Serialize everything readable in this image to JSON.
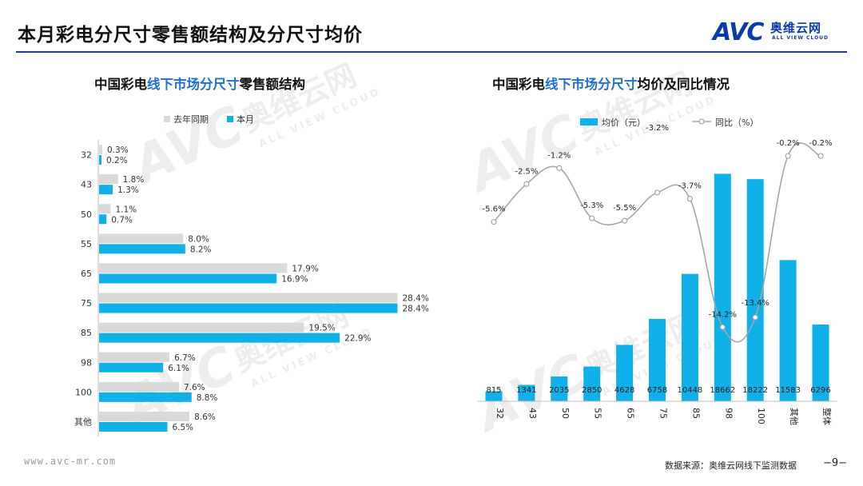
{
  "header": {
    "title": "本月彩电分尺寸零售额结构及分尺寸均价",
    "logo_text": "奥维云网",
    "logo_sub": "ALL VIEW CLOUD",
    "logo_mark": "AVC"
  },
  "watermark": {
    "mark": "AVC",
    "cn": "奥维云网",
    "en": "ALL VIEW CLOUD"
  },
  "left_chart": {
    "title_pre": "中国彩电",
    "title_hl": "线下市场分尺寸",
    "title_post": "零售额结构"
  },
  "right_chart": {
    "title_pre": "中国彩电",
    "title_hl": "线下市场分尺寸",
    "title_post": "均价及同比情况"
  },
  "chart_data": [
    {
      "type": "bar",
      "orientation": "horizontal",
      "categories": [
        "32",
        "43",
        "50",
        "55",
        "65",
        "75",
        "85",
        "98",
        "100",
        "其他"
      ],
      "series": [
        {
          "name": "去年同期",
          "color": "#d9d9d9",
          "values": [
            0.3,
            1.8,
            1.1,
            8.0,
            17.9,
            28.4,
            19.5,
            6.7,
            7.6,
            8.6
          ],
          "labels": [
            "0.3%",
            "1.8%",
            "1.1%",
            "8.0%",
            "17.9%",
            "28.4%",
            "19.5%",
            "6.7%",
            "7.6%",
            "8.6%"
          ]
        },
        {
          "name": "本月",
          "color": "#10b0e8",
          "values": [
            0.2,
            1.3,
            0.7,
            8.2,
            16.9,
            28.4,
            22.9,
            6.1,
            8.8,
            6.5
          ],
          "labels": [
            "0.2%",
            "1.3%",
            "0.7%",
            "8.2%",
            "16.9%",
            "28.4%",
            "22.9%",
            "6.1%",
            "8.8%",
            "6.5%"
          ]
        }
      ],
      "legend_position": "top",
      "grid": false
    },
    {
      "type": "bar+line",
      "categories": [
        "32",
        "43",
        "50",
        "55",
        "65",
        "75",
        "85",
        "98",
        "100",
        "其他",
        "整体"
      ],
      "series": [
        {
          "name": "均价（元）",
          "type": "bar",
          "color": "#10b0e8",
          "values": [
            815,
            1341,
            2035,
            2850,
            4628,
            6758,
            10448,
            18662,
            18222,
            11583,
            6296
          ],
          "labels": [
            "815",
            "1341",
            "2035",
            "2850",
            "4628",
            "6758",
            "10448",
            "18662",
            "18222",
            "11583",
            "6296"
          ]
        },
        {
          "name": "同比（%）",
          "type": "line",
          "color": "#a6a6a6",
          "values": [
            -5.6,
            -2.5,
            -1.2,
            -5.3,
            -5.5,
            -3.2,
            -3.7,
            -14.2,
            -13.4,
            -0.2,
            -0.2
          ],
          "labels": [
            "-5.6%",
            "-2.5%",
            "-1.2%",
            "-5.3%",
            "-5.5%",
            "-3.2%",
            "-3.7%",
            "-14.2%",
            "-13.4%",
            "-0.2%",
            "-0.2%"
          ]
        }
      ],
      "legend_position": "top",
      "grid": false
    }
  ],
  "footer": {
    "url": "www.avc-mr.com",
    "source": "数据来源：奥维云网线下监测数据",
    "page": "−9−"
  }
}
